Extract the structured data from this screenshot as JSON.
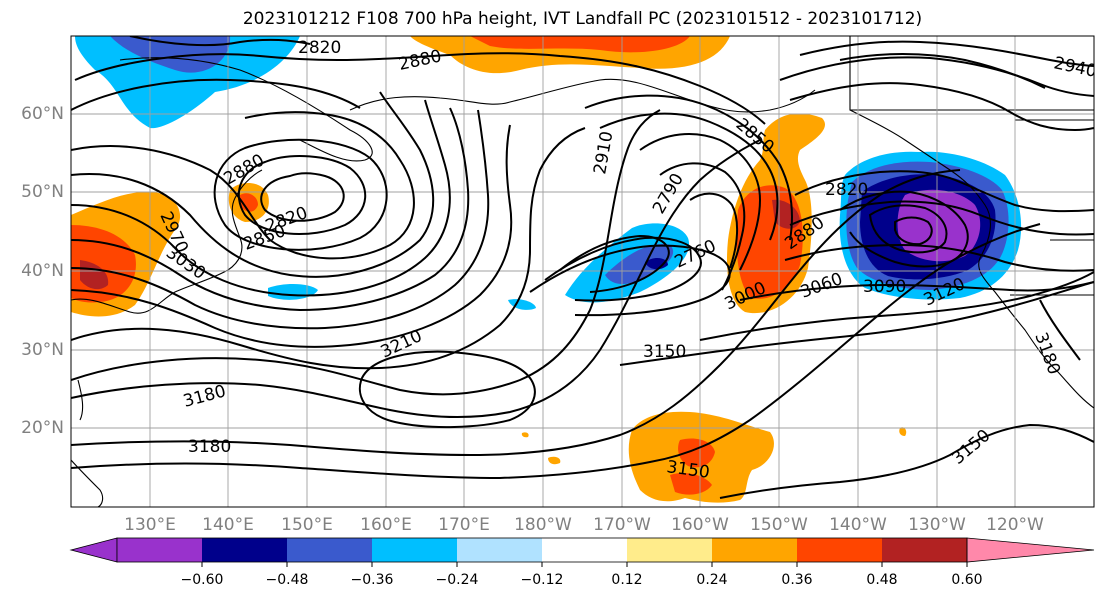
{
  "title": "2023101212 F108 700 hPa height, IVT Landfall PC (2023101512 - 2023101712)",
  "lat_labels": [
    "60°N",
    "50°N",
    "40°N",
    "30°N",
    "20°N"
  ],
  "lon_labels": [
    "130°E",
    "140°E",
    "150°E",
    "160°E",
    "170°E",
    "180°W",
    "170°W",
    "160°W",
    "150°W",
    "140°W",
    "130°W",
    "120°W"
  ],
  "colorbar": {
    "ticks": [
      "−0.60",
      "−0.48",
      "−0.36",
      "−0.24",
      "−0.12",
      "0.12",
      "0.24",
      "0.36",
      "0.48",
      "0.60"
    ],
    "colors": [
      "#9932cc",
      "#00008b",
      "#3a5acd",
      "#00bfff",
      "#b0e2ff",
      "#ffffff",
      "#ffec8b",
      "#ffa500",
      "#ff4500",
      "#b22222",
      "#ff88aa"
    ]
  },
  "contour_labels": [
    "2820",
    "2880",
    "2940",
    "2850",
    "2910",
    "2790",
    "2880",
    "2820",
    "2850",
    "2760",
    "2820",
    "2880",
    "3000",
    "3060",
    "3090",
    "3120",
    "3150",
    "3210",
    "3180",
    "3180",
    "3150",
    "3150",
    "3030",
    "2970",
    "3180"
  ]
}
